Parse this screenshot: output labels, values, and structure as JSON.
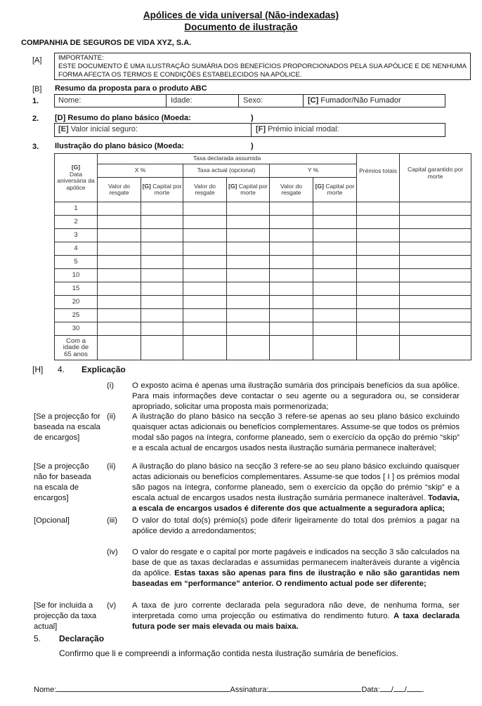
{
  "title_line1": "Apólices de vida universal (Não-indexadas)",
  "title_line2": "Documento de ilustração",
  "company": "COMPANHIA DE SEGUROS DE VIDA XYZ, S.A.",
  "section_a": {
    "tag": "[A]",
    "heading": "IMPORTANTE:",
    "text": "ESTE DOCUMENTO É UMA ILUSTRAÇÃO SUMÁRIA DOS BENEFÍCIOS PROPORCIONADOS PELA SUA APÓLICE E DE NENHUMA FORMA AFECTA OS TERMOS E CONDIÇÕES ESTABELECIDOS NA APÓLICE."
  },
  "section_b": {
    "tag": "[B]",
    "title": "Resumo da proposta para o produto ABC",
    "num": "1.",
    "fields": [
      "Nome:",
      "Idade:",
      "Sexo:"
    ],
    "smoker_tag": "[C]",
    "smoker_label": "Fumador/Não Fumador"
  },
  "section_2": {
    "num": "2.",
    "title": "[D] Resumo do plano básico (Moeda:",
    "close": ")",
    "e_tag": "[E]",
    "e_label": "Valor inicial seguro:",
    "f_tag": "[F]",
    "f_label": "Prémio inicial modal:"
  },
  "section_3": {
    "num": "3.",
    "title": "Ilustração do plano básico (Moeda:",
    "close": ")"
  },
  "table": {
    "g_tag": "[G]",
    "first_col": "Data aniversária da apólice",
    "group": "Taxa declarada assumida",
    "sub": [
      "X %",
      "Taxa actual (opcional)",
      "Y %"
    ],
    "col_value": "Valor do resgate",
    "col_capital_tag": "[G]",
    "col_capital": "Capital por morte",
    "premios": "Prémios totais",
    "capital_garantido": "Capital garantido por morte",
    "rows": [
      "1",
      "2",
      "3",
      "4",
      "5",
      "10",
      "15",
      "20",
      "25",
      "30",
      "Com a idade de 65 anos"
    ]
  },
  "section_4": {
    "tag": "[H]",
    "num": "4.",
    "title": "Explicação",
    "items": [
      {
        "side": "",
        "num": "(i)",
        "text": "O exposto acima é apenas uma ilustração sumária dos principais benefícios da sua apólice. Para mais informações deve contactar o seu agente ou a seguradora ou, se considerar apropriado, solicitar uma proposta mais pormenorizada;",
        "bold": ""
      },
      {
        "side": "[Se a projecção for baseada na escala de encargos]",
        "num": "(ii)",
        "text": "A ilustração do plano básico na secção 3 refere-se apenas ao seu plano básico excluindo quaisquer actas adicionais ou benefícios complementares. Assume-se que todos os prémios modal são pagos na íntegra, conforme planeado, sem o exercício da opção do prémio “skip” e a escala actual de encargos usados nesta ilustração sumária permanece inalterável;",
        "bold": ""
      },
      {
        "side": "[Se a projecção não for baseada na escala de encargos]",
        "num": "(ii)",
        "text": "A ilustração do plano básico na secção 3 refere-se ao seu plano básico excluindo quaisquer actas adicionais ou benefícios complementares. Assume-se que todos [ I ] os prémios modal são pagos na íntegra, conforme planeado, sem o exercício da opção do prémio “skip” e a escala actual de encargos usados nesta ilustração sumária permanece inalterável. ",
        "bold": "Todavia, a escala de encargos usados é diferente dos que actualmente a seguradora aplica;"
      },
      {
        "side": "[Opcional]",
        "num": "(iii)",
        "text": "O valor do total do(s) prémio(s) pode diferir ligeiramente do total dos prémios a pagar na apólice devido a arredondamentos;",
        "bold": ""
      },
      {
        "side": "",
        "num": "(iv)",
        "text": "O valor do resgate e o capital por morte pagáveis e indicados na secção 3 são calculados na base de que as taxas declaradas e assumidas permanecem inalteráveis durante a vigência da apólice. ",
        "bold": "Estas taxas são apenas para fins de ilustração e não são garantidas nem baseadas em “performance” anterior. O rendimento actual pode ser diferente;"
      },
      {
        "side": "[Se for incluida a projecção da taxa actual]",
        "num": "(v)",
        "text": "A taxa de juro corrente declarada pela seguradora não deve, de nenhuma forma, ser interpretada como uma projecção ou estimativa do rendimento futuro. ",
        "bold": "A taxa declarada futura pode ser mais elevada ou mais baixa."
      }
    ]
  },
  "section_5": {
    "num": "5.",
    "title": "Declaração",
    "text": "Confirmo que li e compreendi a informação contida nesta ilustração sumária de benefícios."
  },
  "signature": {
    "name": "Nome:",
    "signature": "Assinatura:",
    "date": "Data:",
    "date_sep": "/"
  }
}
